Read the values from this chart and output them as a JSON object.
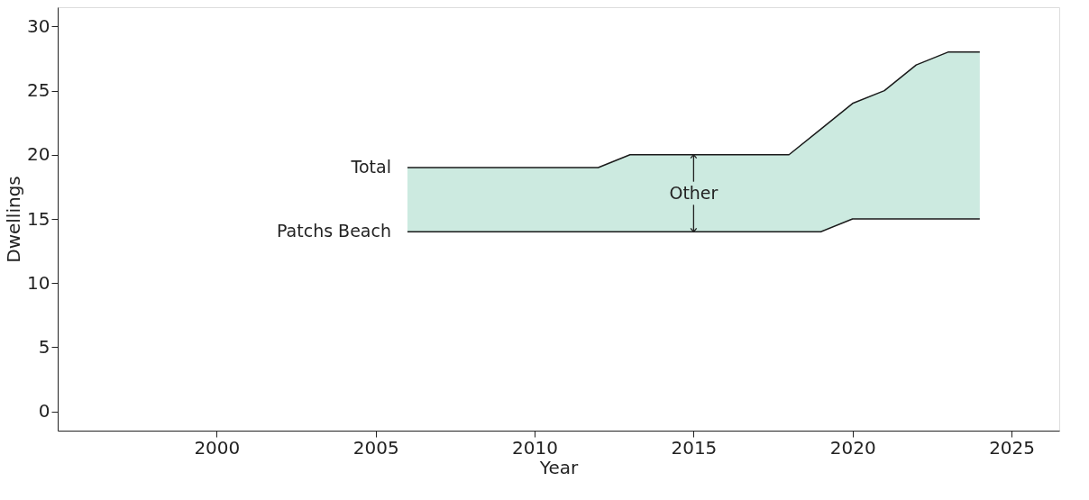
{
  "chart_data": {
    "type": "line",
    "xlabel": "Year",
    "ylabel": "Dwellings",
    "x": [
      2006,
      2007,
      2008,
      2009,
      2010,
      2011,
      2012,
      2013,
      2014,
      2015,
      2016,
      2017,
      2018,
      2019,
      2020,
      2021,
      2022,
      2023,
      2024
    ],
    "series": [
      {
        "name": "Total",
        "color": "#1a1a1a",
        "values": [
          19,
          19,
          19,
          19,
          19,
          19,
          19,
          20,
          20,
          20,
          20,
          20,
          20,
          22,
          24,
          25,
          27,
          28,
          28
        ],
        "lower": [
          14,
          14,
          14,
          14,
          14,
          14,
          14,
          14,
          14,
          14,
          14,
          14,
          14,
          14,
          15,
          15,
          15,
          15,
          15
        ],
        "upper": [
          19,
          19,
          19,
          19,
          19,
          19,
          19,
          20,
          20,
          20,
          20,
          20,
          20,
          22,
          24,
          25,
          27,
          28,
          28
        ]
      },
      {
        "name": "Patchs Beach",
        "color": "#1a1a1a",
        "values": [
          14,
          14,
          14,
          14,
          14,
          14,
          14,
          14,
          14,
          14,
          14,
          14,
          14,
          14,
          15,
          15,
          15,
          15,
          15
        ]
      }
    ],
    "annotations": [
      {
        "text": "Other",
        "x": 2015,
        "y": 20
      }
    ],
    "xlim": [
      1995,
      2026.5
    ],
    "ylim": [
      -1.5,
      31.5
    ],
    "xticks": [
      2000,
      2005,
      2010,
      2015,
      2020,
      2025
    ],
    "yticks": [
      0,
      5,
      10,
      15,
      20,
      25,
      30
    ],
    "grid": false,
    "marker": "none",
    "line_style": "solid"
  }
}
